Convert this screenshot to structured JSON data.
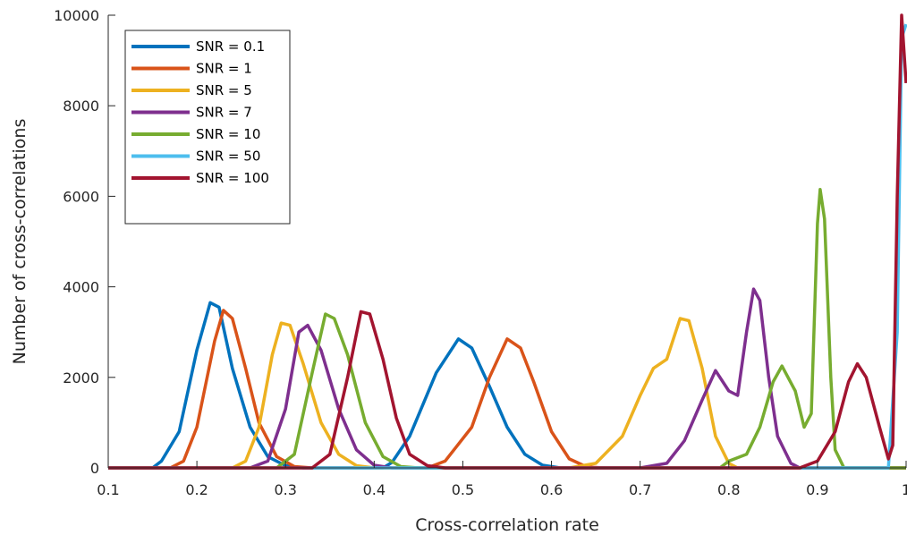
{
  "chart_data": {
    "type": "line",
    "title": "",
    "xlabel": "Cross-correlation rate",
    "ylabel": "Number of cross-correlations",
    "xlim": [
      0.1,
      1
    ],
    "ylim": [
      0,
      10000
    ],
    "xticks": [
      "0.1",
      "0.2",
      "0.3",
      "0.4",
      "0.5",
      "0.6",
      "0.7",
      "0.8",
      "0.9",
      "1"
    ],
    "yticks": [
      "0",
      "2000",
      "4000",
      "6000",
      "8000",
      "10000"
    ],
    "grid": false,
    "legend_position": "top-left",
    "series": [
      {
        "name": "SNR = 0.1",
        "color": "#0072BD",
        "points": [
          [
            0.1,
            0
          ],
          [
            0.15,
            0
          ],
          [
            0.16,
            150
          ],
          [
            0.18,
            800
          ],
          [
            0.2,
            2600
          ],
          [
            0.215,
            3650
          ],
          [
            0.225,
            3550
          ],
          [
            0.24,
            2200
          ],
          [
            0.26,
            900
          ],
          [
            0.28,
            250
          ],
          [
            0.3,
            50
          ],
          [
            0.32,
            0
          ],
          [
            0.41,
            0
          ],
          [
            0.42,
            120
          ],
          [
            0.44,
            700
          ],
          [
            0.47,
            2100
          ],
          [
            0.495,
            2850
          ],
          [
            0.51,
            2650
          ],
          [
            0.53,
            1800
          ],
          [
            0.55,
            900
          ],
          [
            0.57,
            300
          ],
          [
            0.59,
            60
          ],
          [
            0.61,
            0
          ],
          [
            1,
            0
          ]
        ]
      },
      {
        "name": "SNR = 1",
        "color": "#D95319",
        "points": [
          [
            0.1,
            0
          ],
          [
            0.17,
            0
          ],
          [
            0.185,
            150
          ],
          [
            0.2,
            900
          ],
          [
            0.22,
            2800
          ],
          [
            0.23,
            3480
          ],
          [
            0.24,
            3300
          ],
          [
            0.255,
            2200
          ],
          [
            0.27,
            1000
          ],
          [
            0.29,
            250
          ],
          [
            0.31,
            30
          ],
          [
            0.33,
            0
          ],
          [
            0.46,
            0
          ],
          [
            0.48,
            150
          ],
          [
            0.51,
            900
          ],
          [
            0.53,
            2000
          ],
          [
            0.55,
            2850
          ],
          [
            0.565,
            2650
          ],
          [
            0.58,
            1900
          ],
          [
            0.6,
            800
          ],
          [
            0.62,
            200
          ],
          [
            0.64,
            20
          ],
          [
            0.66,
            0
          ],
          [
            1,
            0
          ]
        ]
      },
      {
        "name": "SNR = 5",
        "color": "#EDB120",
        "points": [
          [
            0.1,
            0
          ],
          [
            0.24,
            0
          ],
          [
            0.255,
            150
          ],
          [
            0.27,
            900
          ],
          [
            0.285,
            2500
          ],
          [
            0.295,
            3200
          ],
          [
            0.305,
            3150
          ],
          [
            0.32,
            2300
          ],
          [
            0.34,
            1000
          ],
          [
            0.36,
            300
          ],
          [
            0.38,
            50
          ],
          [
            0.4,
            0
          ],
          [
            0.62,
            0
          ],
          [
            0.65,
            100
          ],
          [
            0.68,
            700
          ],
          [
            0.7,
            1600
          ],
          [
            0.715,
            2200
          ],
          [
            0.73,
            2400
          ],
          [
            0.745,
            3300
          ],
          [
            0.755,
            3250
          ],
          [
            0.77,
            2200
          ],
          [
            0.785,
            700
          ],
          [
            0.8,
            100
          ],
          [
            0.81,
            0
          ],
          [
            1,
            0
          ]
        ]
      },
      {
        "name": "SNR = 7",
        "color": "#7E2F8E",
        "points": [
          [
            0.1,
            0
          ],
          [
            0.26,
            0
          ],
          [
            0.28,
            150
          ],
          [
            0.3,
            1300
          ],
          [
            0.315,
            3000
          ],
          [
            0.325,
            3150
          ],
          [
            0.34,
            2600
          ],
          [
            0.36,
            1300
          ],
          [
            0.38,
            400
          ],
          [
            0.4,
            60
          ],
          [
            0.42,
            0
          ],
          [
            0.7,
            0
          ],
          [
            0.73,
            100
          ],
          [
            0.75,
            600
          ],
          [
            0.77,
            1500
          ],
          [
            0.785,
            2150
          ],
          [
            0.8,
            1700
          ],
          [
            0.81,
            1600
          ],
          [
            0.82,
            3000
          ],
          [
            0.828,
            3950
          ],
          [
            0.835,
            3700
          ],
          [
            0.845,
            2000
          ],
          [
            0.855,
            700
          ],
          [
            0.87,
            100
          ],
          [
            0.88,
            0
          ],
          [
            1,
            0
          ]
        ]
      },
      {
        "name": "SNR = 10",
        "color": "#77AC30",
        "points": [
          [
            0.1,
            0
          ],
          [
            0.29,
            0
          ],
          [
            0.31,
            300
          ],
          [
            0.33,
            2100
          ],
          [
            0.345,
            3400
          ],
          [
            0.355,
            3300
          ],
          [
            0.37,
            2500
          ],
          [
            0.39,
            1000
          ],
          [
            0.41,
            250
          ],
          [
            0.43,
            30
          ],
          [
            0.45,
            0
          ],
          [
            0.79,
            0
          ],
          [
            0.8,
            150
          ],
          [
            0.82,
            300
          ],
          [
            0.835,
            900
          ],
          [
            0.85,
            1900
          ],
          [
            0.86,
            2250
          ],
          [
            0.875,
            1700
          ],
          [
            0.885,
            900
          ],
          [
            0.893,
            1200
          ],
          [
            0.9,
            5400
          ],
          [
            0.903,
            6150
          ],
          [
            0.908,
            5500
          ],
          [
            0.915,
            2000
          ],
          [
            0.92,
            400
          ],
          [
            0.93,
            0
          ],
          [
            1,
            0
          ]
        ]
      },
      {
        "name": "SNR = 50",
        "color": "#4DBEEE",
        "points": [
          [
            0.1,
            0
          ],
          [
            0.98,
            0
          ],
          [
            0.99,
            3000
          ],
          [
            0.995,
            9500
          ],
          [
            1,
            9800
          ]
        ]
      },
      {
        "name": "SNR = 100",
        "color": "#A2142F",
        "points": [
          [
            0.1,
            0
          ],
          [
            0.33,
            0
          ],
          [
            0.35,
            300
          ],
          [
            0.37,
            2000
          ],
          [
            0.385,
            3450
          ],
          [
            0.395,
            3400
          ],
          [
            0.41,
            2400
          ],
          [
            0.425,
            1100
          ],
          [
            0.44,
            300
          ],
          [
            0.46,
            50
          ],
          [
            0.48,
            0
          ],
          [
            0.88,
            0
          ],
          [
            0.9,
            150
          ],
          [
            0.92,
            800
          ],
          [
            0.935,
            1900
          ],
          [
            0.945,
            2300
          ],
          [
            0.955,
            2000
          ],
          [
            0.97,
            900
          ],
          [
            0.98,
            200
          ],
          [
            0.985,
            500
          ],
          [
            0.99,
            6000
          ],
          [
            0.995,
            10000
          ],
          [
            1,
            8500
          ]
        ]
      }
    ]
  }
}
